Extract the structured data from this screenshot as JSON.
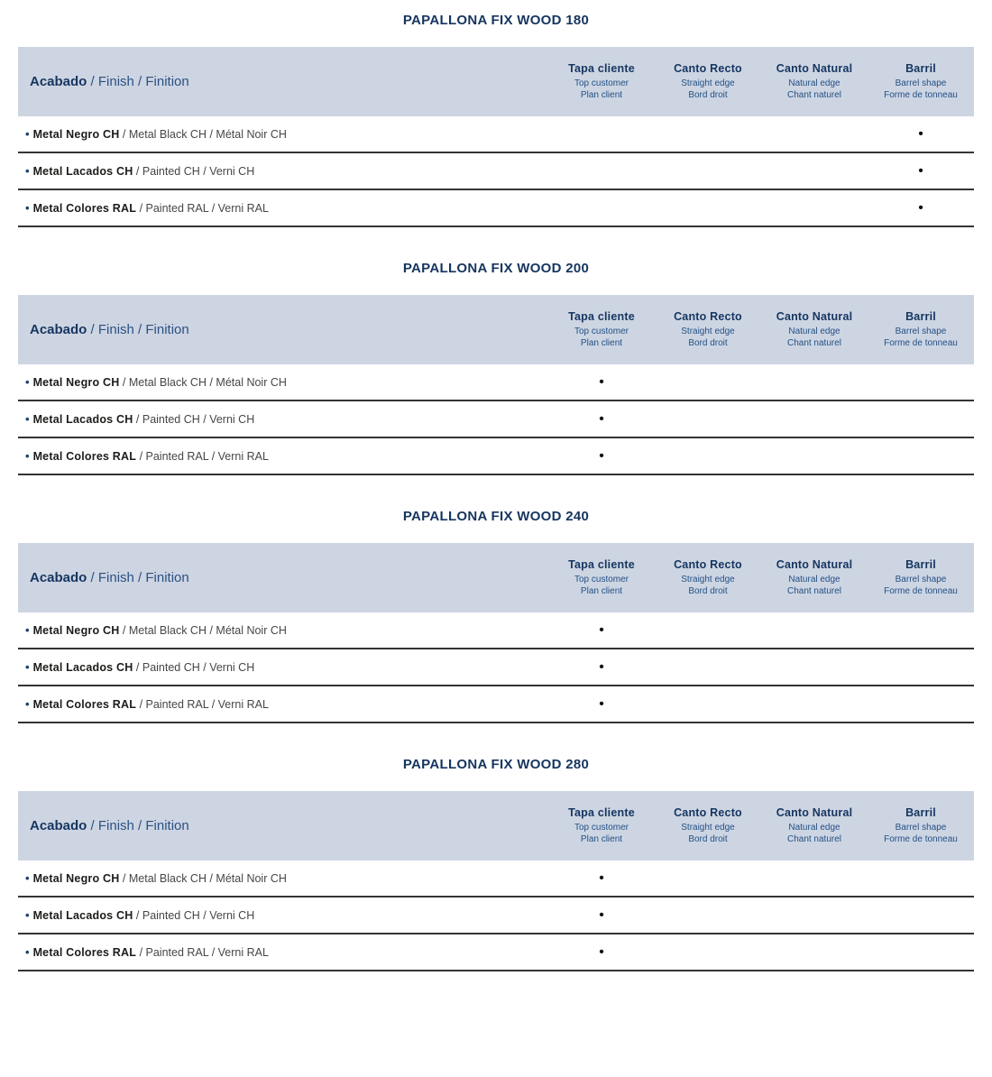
{
  "page": {
    "background": "#ffffff"
  },
  "colors": {
    "title_navy": "#16355f",
    "header_band_bg": "#cdd5e3",
    "header_sub_blue": "#245084",
    "finish_header_rest_blue": "#2d5183",
    "row_bold_text": "#1c1c1a",
    "row_regular_text": "#474645",
    "row_bullet_blue": "#1d4370",
    "divider_line": "#343434",
    "availability_dot_color": "#111111"
  },
  "glyphs": {
    "row_bullet": "•"
  },
  "finish_header": {
    "bold": "Acabado",
    "rest": " / Finish / Finition"
  },
  "column_headers": [
    {
      "title": "Tapa cliente",
      "sub1": "Top customer",
      "sub2": "Plan client"
    },
    {
      "title": "Canto Recto",
      "sub1": "Straight edge",
      "sub2": "Bord droit"
    },
    {
      "title": "Canto Natural",
      "sub1": "Natural edge",
      "sub2": "Chant naturel"
    },
    {
      "title": "Barril",
      "sub1": "Barrel shape",
      "sub2": "Forme de tonneau"
    }
  ],
  "tables": [
    {
      "title": "PAPALLONA FIX WOOD 180",
      "rows": [
        {
          "bold": "Metal Negro CH",
          "rest": " / Metal Black CH / Métal Noir CH",
          "cells": [
            "",
            "",
            "",
            "•"
          ]
        },
        {
          "bold": "Metal Lacados CH",
          "rest": " / Painted CH / Verni CH",
          "cells": [
            "",
            "",
            "",
            "•"
          ]
        },
        {
          "bold": "Metal Colores RAL",
          "rest": " / Painted RAL / Verni RAL",
          "cells": [
            "",
            "",
            "",
            "•"
          ]
        }
      ]
    },
    {
      "title": "PAPALLONA FIX WOOD 200",
      "rows": [
        {
          "bold": "Metal Negro CH",
          "rest": " / Metal Black CH / Métal Noir CH",
          "cells": [
            "•",
            "",
            "",
            ""
          ]
        },
        {
          "bold": "Metal Lacados CH",
          "rest": " / Painted CH / Verni CH",
          "cells": [
            "•",
            "",
            "",
            ""
          ]
        },
        {
          "bold": "Metal Colores RAL",
          "rest": " / Painted RAL / Verni RAL",
          "cells": [
            "•",
            "",
            "",
            ""
          ]
        }
      ]
    },
    {
      "title": "PAPALLONA FIX WOOD 240",
      "rows": [
        {
          "bold": "Metal Negro CH",
          "rest": " / Metal Black CH / Métal Noir CH",
          "cells": [
            "•",
            "",
            "",
            ""
          ]
        },
        {
          "bold": "Metal Lacados CH",
          "rest": " / Painted CH / Verni CH",
          "cells": [
            "•",
            "",
            "",
            ""
          ]
        },
        {
          "bold": "Metal Colores RAL",
          "rest": " / Painted RAL / Verni RAL",
          "cells": [
            "•",
            "",
            "",
            ""
          ]
        }
      ]
    },
    {
      "title": "PAPALLONA FIX WOOD 280",
      "rows": [
        {
          "bold": "Metal Negro CH",
          "rest": " / Metal Black CH / Métal Noir CH",
          "cells": [
            "•",
            "",
            "",
            ""
          ]
        },
        {
          "bold": "Metal Lacados CH",
          "rest": " / Painted CH / Verni CH",
          "cells": [
            "•",
            "",
            "",
            ""
          ]
        },
        {
          "bold": "Metal Colores RAL",
          "rest": " / Painted RAL / Verni RAL",
          "cells": [
            "•",
            "",
            "",
            ""
          ]
        }
      ]
    }
  ]
}
